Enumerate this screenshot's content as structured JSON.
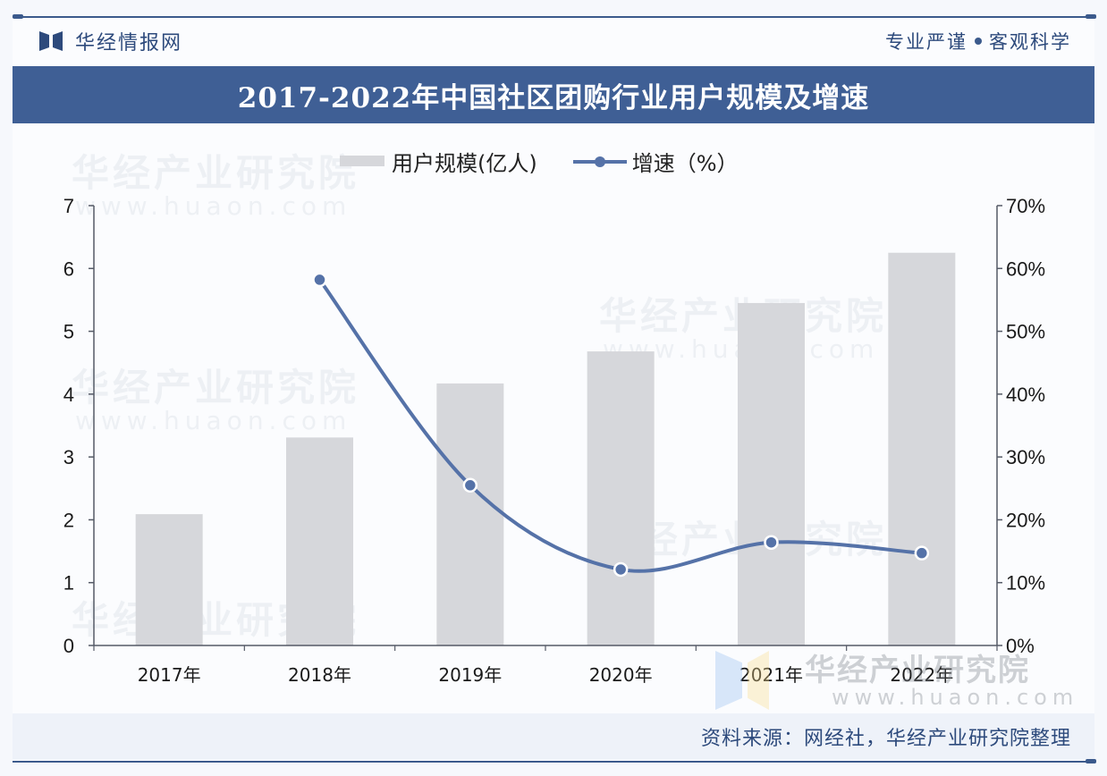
{
  "header": {
    "brand_name": "华经情报网",
    "slogan_left": "专业严谨",
    "slogan_right": "客观科学"
  },
  "title": "2017-2022年中国社区团购行业用户规模及增速",
  "legend": {
    "bar_label": "用户规模(亿人)",
    "line_label": "增速（%）"
  },
  "watermark": {
    "name": "华经产业研究院",
    "url": "www.huaon.com"
  },
  "source": "资料来源：网经社，华经产业研究院整理",
  "colors": {
    "title_bg": "#3f5f95",
    "bar": "#d6d7db",
    "line": "#5572a8",
    "axis": "#555a66",
    "brand_text": "#2d4a7c"
  },
  "chart_data": {
    "type": "bar+line",
    "title": "2017-2022年中国社区团购行业用户规模及增速",
    "categories": [
      "2017年",
      "2018年",
      "2019年",
      "2020年",
      "2021年",
      "2022年"
    ],
    "series": [
      {
        "name": "用户规模(亿人)",
        "type": "bar",
        "axis": "left",
        "values": [
          2.09,
          3.31,
          4.17,
          4.68,
          5.45,
          6.25
        ]
      },
      {
        "name": "增速（%）",
        "type": "line",
        "axis": "right",
        "smooth": true,
        "values": [
          null,
          58.2,
          25.5,
          12.1,
          16.4,
          14.7
        ]
      }
    ],
    "y_left": {
      "label": "",
      "ylim": [
        0,
        7
      ],
      "ticks": [
        "0",
        "1",
        "2",
        "3",
        "4",
        "5",
        "6",
        "7"
      ]
    },
    "y_right": {
      "label": "",
      "ylim": [
        0,
        70
      ],
      "ticks": [
        "0%",
        "10%",
        "20%",
        "30%",
        "40%",
        "50%",
        "60%",
        "70%"
      ]
    },
    "xlabel": "",
    "grid": false,
    "legend_position": "top"
  }
}
